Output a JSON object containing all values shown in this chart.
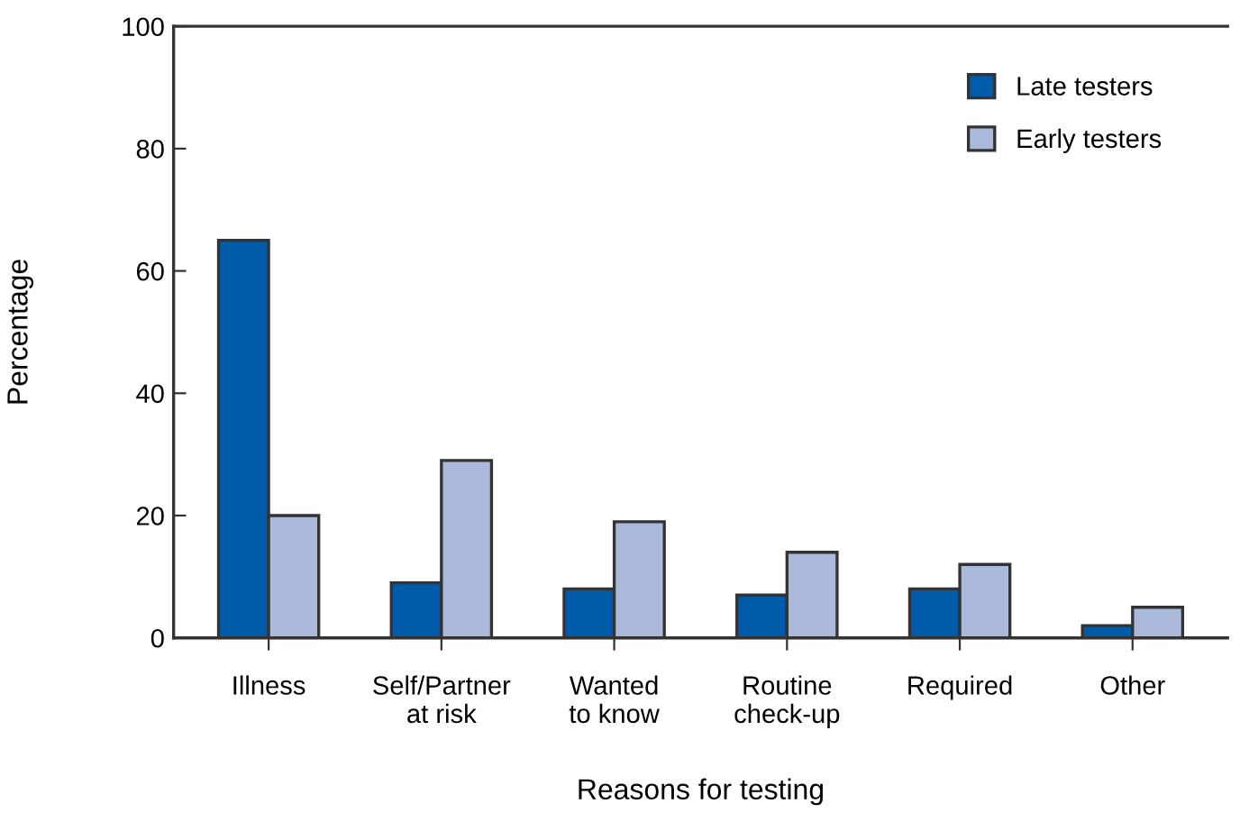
{
  "chart_data": {
    "type": "bar",
    "xlabel": "Reasons for testing",
    "ylabel": "Percentage",
    "categories": [
      "Illness",
      "Self/Partner\nat risk",
      "Wanted\nto know",
      "Routine\ncheck-up",
      "Required",
      "Other"
    ],
    "series": [
      {
        "name": "Late testers",
        "color": "#005ca9",
        "values": [
          65,
          9,
          8,
          7,
          8,
          2
        ]
      },
      {
        "name": "Early testers",
        "color": "#aab9dc",
        "values": [
          20,
          29,
          19,
          14,
          12,
          5
        ]
      }
    ],
    "ylim": [
      0,
      100
    ],
    "yticks": [
      0,
      20,
      40,
      60,
      80,
      100
    ],
    "grid": false,
    "legend": "top right"
  }
}
